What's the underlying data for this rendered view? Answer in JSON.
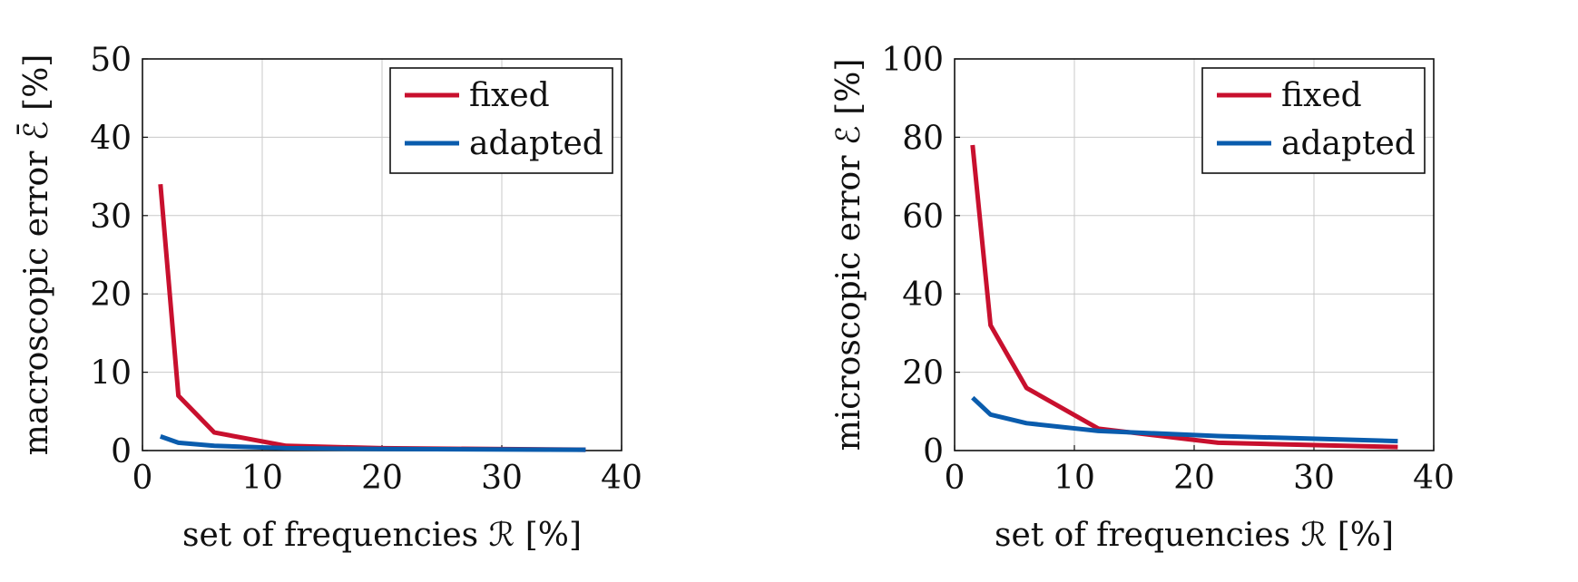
{
  "colors": {
    "fixed": "#c8102e",
    "adapted": "#0a5cad"
  },
  "chart_data": [
    {
      "type": "line",
      "xlabel": "set of frequencies ℛ [%]",
      "ylabel": "macroscopic error ℰ̄ [%]",
      "xlim": [
        0,
        40
      ],
      "ylim": [
        0,
        50
      ],
      "xticks": [
        0,
        10,
        20,
        30,
        40
      ],
      "yticks": [
        0,
        10,
        20,
        30,
        40,
        50
      ],
      "grid": true,
      "legend": "top-right",
      "series": [
        {
          "name": "fixed",
          "x": [
            1.5,
            3,
            6,
            12,
            20,
            37
          ],
          "y": [
            34,
            7,
            2.3,
            0.6,
            0.3,
            0.1
          ]
        },
        {
          "name": "adapted",
          "x": [
            1.5,
            3,
            6,
            12,
            20,
            37
          ],
          "y": [
            1.8,
            1,
            0.6,
            0.3,
            0.2,
            0.1
          ]
        }
      ]
    },
    {
      "type": "line",
      "xlabel": "set of frequencies ℛ [%]",
      "ylabel": "microscopic error ℰ [%]",
      "xlim": [
        0,
        40
      ],
      "ylim": [
        0,
        100
      ],
      "xticks": [
        0,
        10,
        20,
        30,
        40
      ],
      "yticks": [
        0,
        20,
        40,
        60,
        80,
        100
      ],
      "grid": true,
      "legend": "top-right",
      "series": [
        {
          "name": "fixed",
          "x": [
            1.5,
            3,
            6,
            12,
            22,
            37
          ],
          "y": [
            78,
            32,
            16,
            5.6,
            2,
            0.9
          ]
        },
        {
          "name": "adapted",
          "x": [
            1.5,
            3,
            6,
            12,
            22,
            37
          ],
          "y": [
            13.5,
            9.2,
            7,
            5,
            3.7,
            2.4
          ]
        }
      ]
    }
  ]
}
